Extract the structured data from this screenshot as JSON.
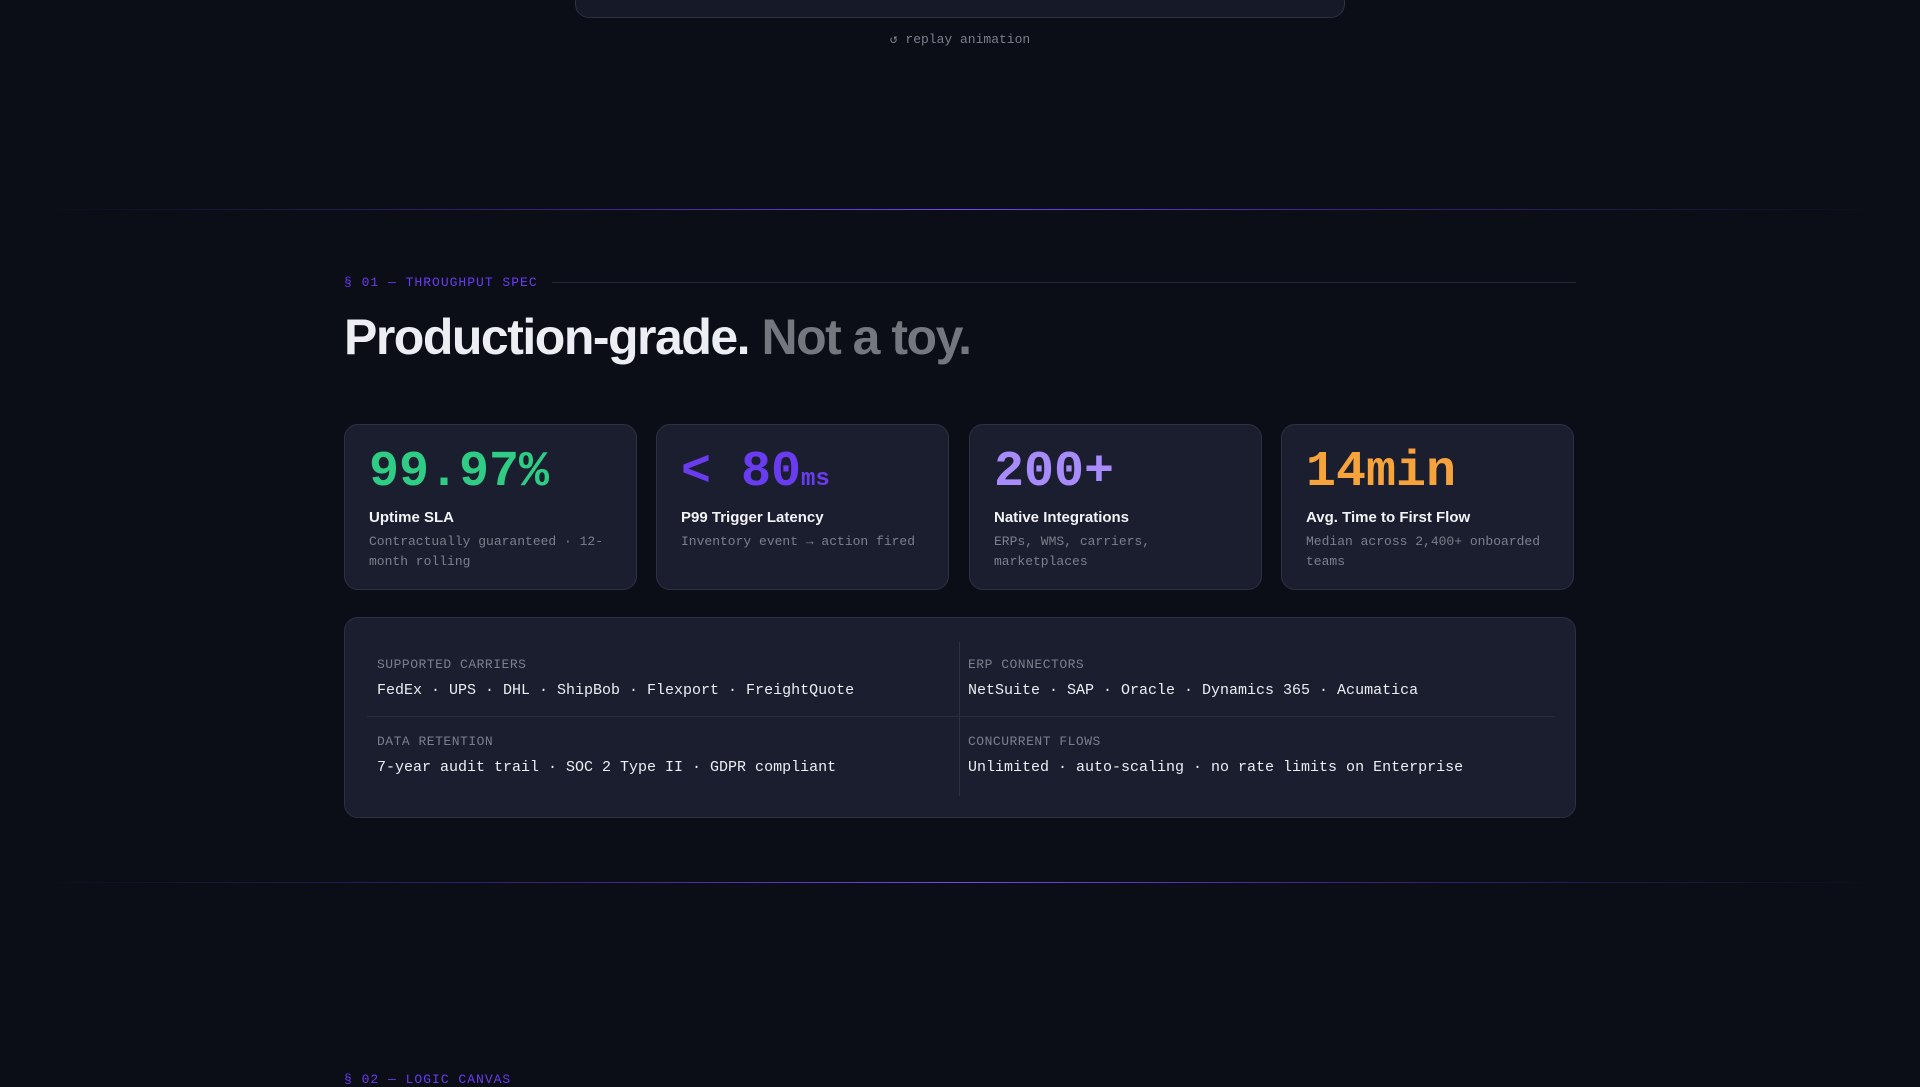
{
  "replay": "↺ replay animation",
  "section": {
    "eyebrow": "§ 01 — THROUGHPUT SPEC",
    "heading": "Production-grade.",
    "heading_dim": "Not a toy."
  },
  "cards": [
    {
      "value": "99.97%",
      "unit": "",
      "label": "Uptime SLA",
      "desc": "Contractually guaranteed · 12-month rolling"
    },
    {
      "value": "< 80",
      "unit": "ms",
      "label": "P99 Trigger Latency",
      "desc": "Inventory event → action fired"
    },
    {
      "value": "200+",
      "unit": "",
      "label": "Native Integrations",
      "desc": "ERPs, WMS, carriers, marketplaces"
    },
    {
      "value": "14min",
      "unit": "",
      "label": "Avg. Time to First Flow",
      "desc": "Median across 2,400+ onboarded teams"
    }
  ],
  "specs": [
    {
      "label": "SUPPORTED CARRIERS",
      "value": "FedEx · UPS · DHL · ShipBob · Flexport · FreightQuote"
    },
    {
      "label": "ERP CONNECTORS",
      "value": "NetSuite · SAP · Oracle · Dynamics 365 · Acumatica"
    },
    {
      "label": "DATA RETENTION",
      "value": "7-year audit trail · SOC 2 Type II · GDPR compliant"
    },
    {
      "label": "CONCURRENT FLOWS",
      "value": "Unlimited · auto-scaling · no rate limits on Enterprise"
    }
  ],
  "next_section": "§ 02 — LOGIC CANVAS"
}
